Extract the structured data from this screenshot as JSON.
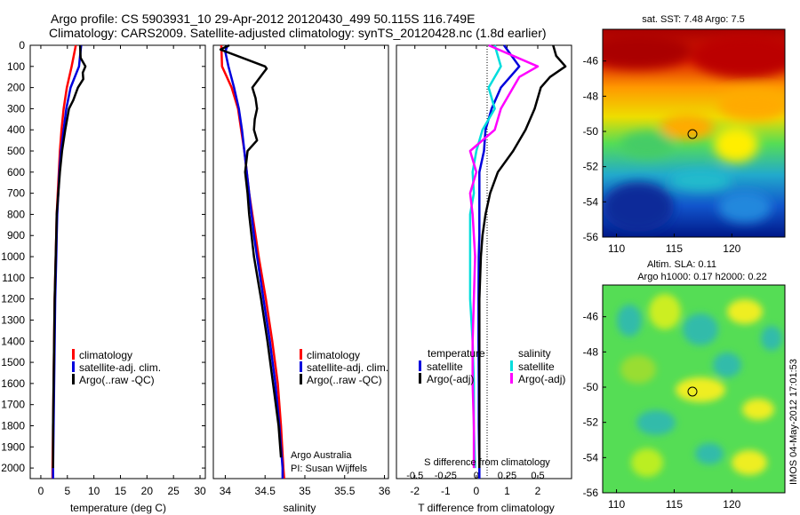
{
  "header": {
    "line1": "Argo profile: CS 5903931_10 29-Apr-2012 20120430_499 50.115S 116.749E",
    "line2": "Climatology: CARS2009. Satellite-adjusted climatology: synTS_20120428.nc (1.8d earlier)"
  },
  "depth_ticks": [
    "0",
    "100",
    "200",
    "300",
    "400",
    "500",
    "600",
    "700",
    "800",
    "900",
    "1000",
    "1100",
    "1200",
    "1300",
    "1400",
    "1500",
    "1600",
    "1700",
    "1800",
    "1900",
    "2000"
  ],
  "colors": {
    "climatology": "#ff0000",
    "satellite": "#0000dd",
    "argo": "#000000",
    "sat_salinity": "#00dddd",
    "argo_salinity": "#ff00ff"
  },
  "chart_data": [
    {
      "type": "line",
      "xlabel": "temperature (deg C)",
      "ylabel": "",
      "xlim": [
        -2,
        31
      ],
      "ylim": [
        2050,
        0
      ],
      "x_ticks": [
        "0",
        "5",
        "10",
        "15",
        "20",
        "25",
        "30"
      ],
      "legend": [
        "climatology",
        "satellite-adj. clim.",
        "Argo(..raw -QC)"
      ],
      "series": [
        {
          "name": "climatology",
          "depth": [
            0,
            100,
            200,
            300,
            400,
            500,
            600,
            700,
            800,
            900,
            1000,
            1200,
            1400,
            1600,
            1800,
            2000,
            2050
          ],
          "values": [
            6.6,
            5.8,
            4.9,
            4.3,
            3.9,
            3.6,
            3.4,
            3.2,
            3.0,
            2.9,
            2.8,
            2.6,
            2.5,
            2.4,
            2.3,
            2.2,
            2.2
          ]
        },
        {
          "name": "satellite-adj. clim.",
          "depth": [
            0,
            100,
            200,
            300,
            400,
            500,
            600,
            700,
            800,
            900,
            1000,
            1200,
            1400,
            1600,
            1800,
            2000,
            2050
          ],
          "values": [
            7.6,
            7.2,
            5.6,
            4.8,
            4.3,
            3.8,
            3.5,
            3.3,
            3.1,
            3.0,
            2.9,
            2.7,
            2.6,
            2.5,
            2.4,
            2.3,
            2.3
          ]
        },
        {
          "name": "Argo(..raw -QC)",
          "depth": [
            0,
            60,
            100,
            130,
            160,
            200,
            260,
            300,
            400,
            500,
            600,
            700,
            800,
            900,
            1000,
            1200,
            1400,
            1600,
            1800,
            2000
          ],
          "values": [
            7.4,
            7.5,
            8.4,
            7.9,
            8.0,
            7.0,
            6.1,
            5.3,
            4.6,
            4.0,
            3.6,
            3.3,
            3.0,
            2.9,
            2.8,
            2.6,
            2.5,
            2.4,
            2.3,
            2.3
          ]
        }
      ]
    },
    {
      "type": "line",
      "xlabel": "salinity",
      "ylabel": "",
      "xlim": [
        33.85,
        36.05
      ],
      "ylim": [
        2050,
        0
      ],
      "x_ticks": [
        "34",
        "34.5",
        "35",
        "35.5",
        "36"
      ],
      "legend": [
        "climatology",
        "satellite-adj. clim.",
        "Argo(..raw -QC)"
      ],
      "annotation": [
        "Argo Australia",
        "PI: Susan Wijffels"
      ],
      "series": [
        {
          "name": "climatology",
          "depth": [
            0,
            100,
            200,
            300,
            400,
            500,
            600,
            700,
            800,
            900,
            1000,
            1200,
            1400,
            1600,
            1800,
            2000,
            2050
          ],
          "values": [
            33.95,
            33.96,
            34.08,
            34.16,
            34.2,
            34.24,
            34.27,
            34.3,
            34.34,
            34.38,
            34.42,
            34.51,
            34.59,
            34.66,
            34.7,
            34.73,
            34.74
          ]
        },
        {
          "name": "satellite-adj. clim.",
          "depth": [
            0,
            30,
            100,
            200,
            300,
            400,
            500,
            600,
            700,
            800,
            900,
            1000,
            1200,
            1400,
            1600,
            1800,
            2000,
            2050
          ],
          "values": [
            34.03,
            34.0,
            34.04,
            34.11,
            34.17,
            34.21,
            34.24,
            34.27,
            34.3,
            34.33,
            34.36,
            34.4,
            34.48,
            34.56,
            34.63,
            34.68,
            34.72,
            34.72
          ]
        },
        {
          "name": "Argo(..raw -QC)",
          "depth": [
            0,
            20,
            100,
            110,
            130,
            200,
            250,
            300,
            350,
            400,
            450,
            500,
            600,
            700,
            800,
            900,
            1000,
            1200,
            1400,
            1600,
            1800,
            1950
          ],
          "values": [
            34.05,
            33.94,
            34.5,
            34.52,
            34.48,
            34.34,
            34.38,
            34.4,
            34.37,
            34.36,
            34.4,
            34.28,
            34.25,
            34.28,
            34.3,
            34.33,
            34.36,
            34.45,
            34.53,
            34.6,
            34.67,
            34.7
          ]
        }
      ]
    },
    {
      "type": "line",
      "xlabel": "T difference from climatology",
      "x2label": "S difference from climatology",
      "ylabel": "",
      "xlim": [
        -2.6,
        3.1
      ],
      "ylim": [
        2050,
        0
      ],
      "x_ticks": [
        "-2",
        "-1",
        "0",
        "1",
        "2"
      ],
      "x2_ticks": [
        "-0.5",
        "-0.25",
        "0",
        "0.25",
        "0.5"
      ],
      "legend_left_title": "temperature",
      "legend_right_title": "salinity",
      "legend_left": [
        "satellite",
        "Argo(-adj)"
      ],
      "legend_right": [
        "satellite",
        "Argo(-adj)"
      ],
      "series": [
        {
          "name": "temperature satellite",
          "depth": [
            0,
            100,
            200,
            300,
            400,
            500,
            600,
            700,
            800,
            900,
            1000,
            1200,
            1400,
            1600,
            1800,
            2000,
            2050
          ],
          "values": [
            0.9,
            1.4,
            0.8,
            0.5,
            0.3,
            0.25,
            0.1,
            0.1,
            0.1,
            0.1,
            0.08,
            0.07,
            0.07,
            0.08,
            0.08,
            0.1,
            0.1
          ]
        },
        {
          "name": "temperature Argo(-adj)",
          "depth": [
            0,
            50,
            100,
            150,
            200,
            300,
            400,
            500,
            600,
            700,
            800,
            900,
            1000,
            1200,
            1400,
            1600,
            1800,
            2000
          ],
          "values": [
            2.5,
            2.6,
            2.9,
            2.4,
            2.1,
            1.9,
            1.6,
            1.2,
            0.7,
            0.45,
            0.3,
            0.2,
            0.15,
            0.1,
            0.1,
            0.1,
            0.1,
            0.1
          ]
        },
        {
          "name": "salinity satellite",
          "depth": [
            0,
            100,
            200,
            300,
            400,
            500,
            600,
            700,
            800,
            900,
            1000,
            1200,
            1400,
            1600,
            1800,
            2000
          ],
          "values": [
            0.15,
            0.2,
            0.1,
            0.15,
            0.05,
            0.0,
            -0.03,
            -0.02,
            -0.05,
            -0.05,
            -0.05,
            -0.05,
            -0.03,
            -0.02,
            -0.02,
            -0.01
          ]
        },
        {
          "name": "salinity Argo(-adj)",
          "depth": [
            0,
            100,
            150,
            200,
            300,
            400,
            500,
            600,
            700,
            800,
            900,
            1000,
            1200,
            1400,
            1600,
            1800,
            2000
          ],
          "values": [
            0.1,
            0.5,
            0.35,
            0.3,
            0.2,
            0.15,
            -0.05,
            0.0,
            -0.05,
            -0.03,
            -0.02,
            -0.01,
            -0.02,
            -0.03,
            -0.03,
            -0.02,
            -0.02
          ]
        }
      ]
    },
    {
      "type": "heatmap",
      "title": "sat. SST: 7.48 Argo: 7.5",
      "x_ticks": [
        "110",
        "115",
        "120"
      ],
      "y_ticks": [
        "-46",
        "-48",
        "-50",
        "-52",
        "-54",
        "-56"
      ],
      "xlim": [
        108.8,
        124.6
      ],
      "ylim": [
        -56,
        -44.2
      ],
      "marker": {
        "lon": 116.75,
        "lat": -50.1
      }
    },
    {
      "type": "heatmap",
      "title": "Altim. SLA: 0.11",
      "subtitle": "Argo h1000: 0.17 h2000: 0.22",
      "x_ticks": [
        "110",
        "115",
        "120"
      ],
      "y_ticks": [
        "-46",
        "-48",
        "-50",
        "-52",
        "-54",
        "-56"
      ],
      "xlim": [
        108.8,
        124.6
      ],
      "ylim": [
        -56,
        -44.2
      ],
      "marker": {
        "lon": 116.75,
        "lat": -50.1
      }
    }
  ],
  "footer_stamp": "IMOS 04-May-2012 17:01:53"
}
